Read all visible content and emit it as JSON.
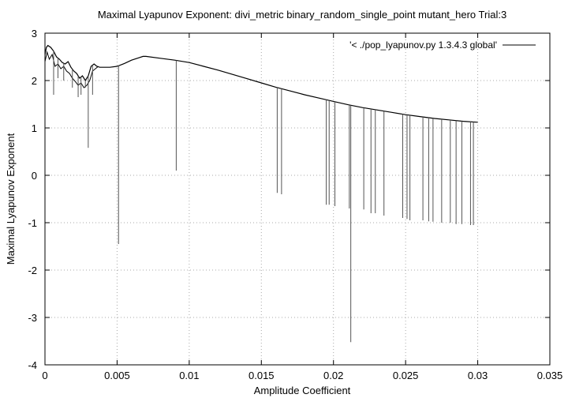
{
  "chart_data": {
    "type": "line",
    "title": "Maximal Lyapunov Exponent: divi_metric binary_random_single_point mutant_hero Trial:3",
    "xlabel": "Amplitude Coefficient",
    "ylabel": "Maximal Lyapunov Exponent",
    "xlim": [
      0,
      0.035
    ],
    "ylim": [
      -4,
      3
    ],
    "xticks": [
      0,
      0.005,
      0.01,
      0.015,
      0.02,
      0.025,
      0.03,
      0.035
    ],
    "xtick_labels": [
      "0",
      "0.005",
      "0.01",
      "0.015",
      "0.02",
      "0.025",
      "0.03",
      "0.035"
    ],
    "yticks": [
      -4,
      -3,
      -2,
      -1,
      0,
      1,
      2,
      3
    ],
    "ytick_labels": [
      "-4",
      "-3",
      "-2",
      "-1",
      "0",
      "1",
      "2",
      "3"
    ],
    "grid": true,
    "legend_position": "top-right",
    "series": [
      {
        "name": "'< ./pop_lyapunov.py 1.3.4.3 global'",
        "color": "#000000",
        "envelope": [
          [
            0.0,
            2.55
          ],
          [
            0.0001,
            2.7
          ],
          [
            0.0002,
            2.74
          ],
          [
            0.0004,
            2.7
          ],
          [
            0.0006,
            2.62
          ],
          [
            0.0008,
            2.5
          ],
          [
            0.001,
            2.45
          ],
          [
            0.0012,
            2.38
          ],
          [
            0.0014,
            2.35
          ],
          [
            0.0016,
            2.4
          ],
          [
            0.0018,
            2.28
          ],
          [
            0.002,
            2.2
          ],
          [
            0.0022,
            2.15
          ],
          [
            0.0024,
            2.05
          ],
          [
            0.0026,
            2.1
          ],
          [
            0.0028,
            2.0
          ],
          [
            0.003,
            2.1
          ],
          [
            0.0032,
            2.3
          ],
          [
            0.0034,
            2.35
          ],
          [
            0.0036,
            2.3
          ],
          [
            0.0038,
            2.28
          ],
          [
            0.004,
            2.28
          ],
          [
            0.0045,
            2.28
          ],
          [
            0.005,
            2.3
          ],
          [
            0.0055,
            2.36
          ],
          [
            0.006,
            2.43
          ],
          [
            0.0065,
            2.48
          ],
          [
            0.0068,
            2.51
          ],
          [
            0.007,
            2.51
          ],
          [
            0.008,
            2.47
          ],
          [
            0.009,
            2.43
          ],
          [
            0.01,
            2.38
          ],
          [
            0.011,
            2.3
          ],
          [
            0.012,
            2.22
          ],
          [
            0.013,
            2.13
          ],
          [
            0.014,
            2.04
          ],
          [
            0.015,
            1.95
          ],
          [
            0.016,
            1.86
          ],
          [
            0.017,
            1.78
          ],
          [
            0.018,
            1.7
          ],
          [
            0.019,
            1.63
          ],
          [
            0.02,
            1.56
          ],
          [
            0.021,
            1.49
          ],
          [
            0.022,
            1.43
          ],
          [
            0.023,
            1.38
          ],
          [
            0.024,
            1.33
          ],
          [
            0.025,
            1.28
          ],
          [
            0.026,
            1.24
          ],
          [
            0.027,
            1.2
          ],
          [
            0.028,
            1.17
          ],
          [
            0.029,
            1.14
          ],
          [
            0.03,
            1.12
          ]
        ],
        "noise_region": [
          [
            0.0,
            2.4
          ],
          [
            0.00015,
            2.6
          ],
          [
            0.0003,
            2.45
          ],
          [
            0.0005,
            2.55
          ],
          [
            0.0007,
            2.3
          ],
          [
            0.0009,
            2.35
          ],
          [
            0.0011,
            2.25
          ],
          [
            0.0013,
            2.3
          ],
          [
            0.0015,
            2.2
          ],
          [
            0.0017,
            2.15
          ],
          [
            0.0019,
            2.05
          ],
          [
            0.0021,
            1.98
          ],
          [
            0.0023,
            1.9
          ],
          [
            0.0025,
            1.95
          ],
          [
            0.0027,
            1.85
          ],
          [
            0.0029,
            1.9
          ],
          [
            0.0031,
            2.0
          ],
          [
            0.0033,
            2.2
          ],
          [
            0.0035,
            2.25
          ],
          [
            0.0037,
            2.3
          ]
        ],
        "spikes": [
          [
            0.0006,
            1.7
          ],
          [
            0.0009,
            2.05
          ],
          [
            0.0013,
            2.0
          ],
          [
            0.0019,
            1.85
          ],
          [
            0.0023,
            1.65
          ],
          [
            0.0025,
            1.7
          ],
          [
            0.0028,
            1.85
          ],
          [
            0.003,
            0.58
          ],
          [
            0.0033,
            1.7
          ],
          [
            0.0051,
            -1.45
          ],
          [
            0.0091,
            0.1
          ],
          [
            0.0161,
            -0.37
          ],
          [
            0.0164,
            -0.4
          ],
          [
            0.0195,
            -0.62
          ],
          [
            0.0197,
            -0.62
          ],
          [
            0.0201,
            -0.65
          ],
          [
            0.0211,
            -0.7
          ],
          [
            0.0212,
            -3.52
          ],
          [
            0.0221,
            -0.72
          ],
          [
            0.0226,
            -0.8
          ],
          [
            0.0229,
            -0.8
          ],
          [
            0.0235,
            -0.85
          ],
          [
            0.0248,
            -0.9
          ],
          [
            0.0251,
            -0.92
          ],
          [
            0.0253,
            -0.95
          ],
          [
            0.0262,
            -0.95
          ],
          [
            0.0266,
            -0.97
          ],
          [
            0.0269,
            -0.98
          ],
          [
            0.0275,
            -1.0
          ],
          [
            0.0281,
            -1.0
          ],
          [
            0.0285,
            -1.03
          ],
          [
            0.0289,
            -1.03
          ],
          [
            0.0295,
            -1.05
          ],
          [
            0.0297,
            -1.05
          ]
        ]
      }
    ]
  }
}
